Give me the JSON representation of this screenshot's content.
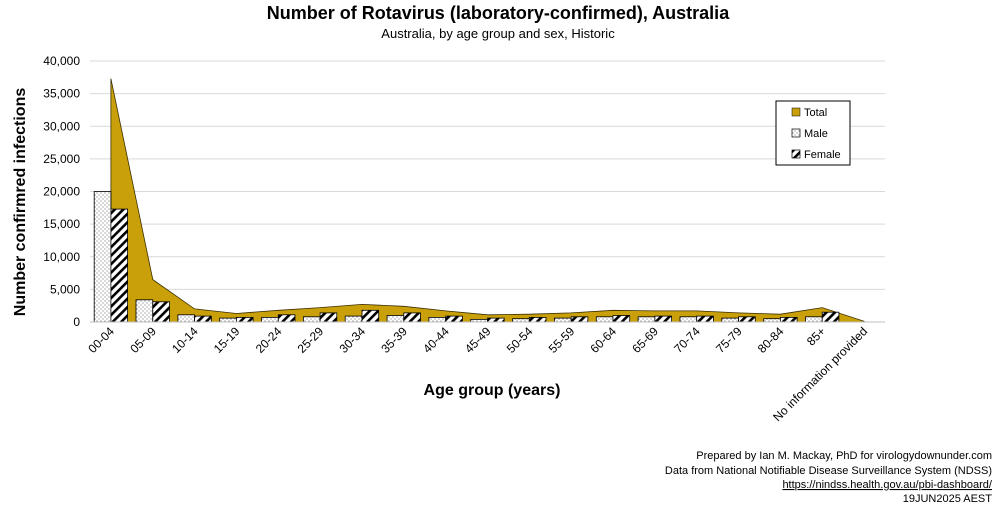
{
  "chart_data": {
    "type": "bar",
    "title": "Number of Rotavirus (laboratory-confirmed), Australia",
    "subtitle": "Australia, by age group and sex, Historic",
    "xlabel": "Age group (years)",
    "ylabel": "Number confirmred infections",
    "ylim": [
      0,
      40000
    ],
    "yticks": [
      0,
      5000,
      10000,
      15000,
      20000,
      25000,
      30000,
      35000,
      40000
    ],
    "ytick_labels": [
      "0",
      "5,000",
      "10,000",
      "15,000",
      "20,000",
      "25,000",
      "30,000",
      "35,000",
      "40,000"
    ],
    "grid": true,
    "legend_position": "right",
    "categories": [
      "00-04",
      "05-09",
      "10-14",
      "15-19",
      "20-24",
      "25-29",
      "30-34",
      "35-39",
      "40-44",
      "45-49",
      "50-54",
      "55-59",
      "60-64",
      "65-69",
      "70-74",
      "75-79",
      "80-84",
      "85+",
      "No information provided"
    ],
    "series": [
      {
        "name": "Total",
        "render": "area",
        "color": "#c9a00a",
        "values": [
          37300,
          6500,
          2000,
          1300,
          1800,
          2200,
          2700,
          2400,
          1700,
          1100,
          1200,
          1400,
          1800,
          1700,
          1700,
          1400,
          1200,
          2200,
          100
        ]
      },
      {
        "name": "Male",
        "render": "bar",
        "pattern": "dots",
        "values": [
          20000,
          3400,
          1100,
          600,
          700,
          800,
          900,
          1000,
          700,
          400,
          500,
          600,
          800,
          800,
          800,
          600,
          500,
          800,
          0
        ]
      },
      {
        "name": "Female",
        "render": "bar",
        "pattern": "diagonal-hatch",
        "values": [
          17300,
          3100,
          900,
          700,
          1100,
          1400,
          1800,
          1400,
          900,
          600,
          700,
          800,
          1000,
          900,
          900,
          800,
          700,
          1500,
          0
        ]
      }
    ],
    "credits": [
      "Prepared by Ian M. Mackay, PhD for virologydownunder.com",
      "Data from National Notifiable Disease Surveillance System (NDSS)",
      "https://nindss.health.gov.au/pbi-dashboard/",
      "19JUN2025 AEST"
    ]
  }
}
